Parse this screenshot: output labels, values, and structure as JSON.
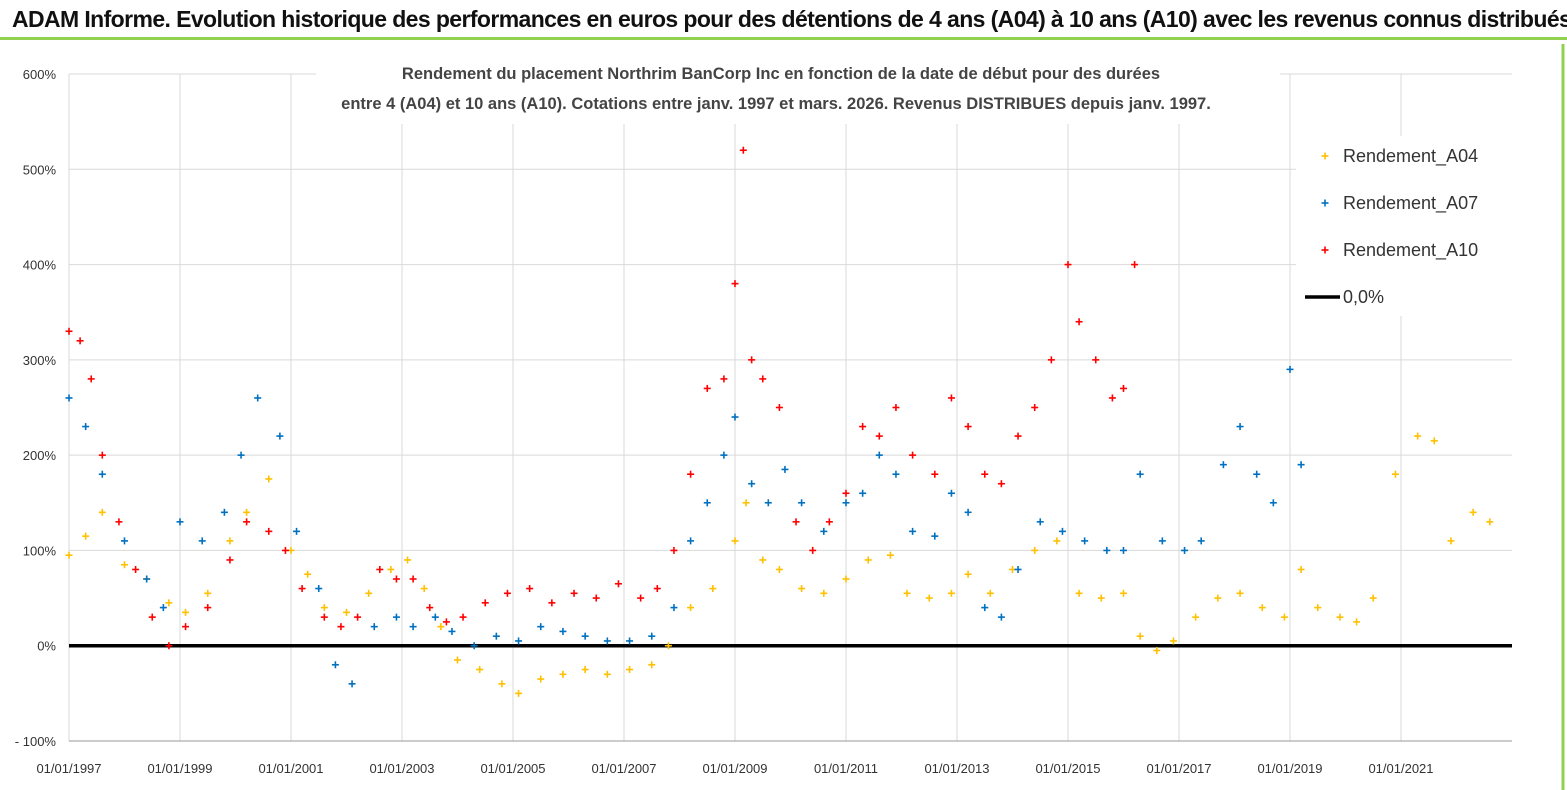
{
  "banner": {
    "title": "ADAM Informe. Evolution historique des performances en euros pour des détentions de 4 ans (A04) à 10 ans (A10) avec les revenus connus distribués"
  },
  "colors": {
    "A04": "#ffc000",
    "A07": "#0070c0",
    "A10": "#ff0000",
    "zero": "#000000",
    "banner_border": "#92d050",
    "grid": "#d9d9d9"
  },
  "chart_data": {
    "type": "scatter",
    "title_lines": [
      "Rendement du placement Northrim BanCorp Inc en fonction de la date de début pour des durées",
      "entre 4 (A04) et 10 ans (A10).  Cotations entre janv. 1997 et mars. 2026. Revenus DISTRIBUES depuis janv. 1997."
    ],
    "y_ticks": [
      "600%",
      "500%",
      "400%",
      "300%",
      "200%",
      "100%",
      "0%",
      "- 100%"
    ],
    "ylim": [
      -100,
      600
    ],
    "x_ticks": [
      "01/01/1997",
      "01/01/1999",
      "01/01/2001",
      "01/01/2003",
      "01/01/2005",
      "01/01/2007",
      "01/01/2009",
      "01/01/2011",
      "01/01/2013",
      "01/01/2015",
      "01/01/2017",
      "01/01/2019",
      "01/01/2021"
    ],
    "xlim": [
      1997.0,
      2023.0
    ],
    "legend_position": "top-right",
    "legend": [
      "Rendement_A04",
      "Rendement_A07",
      "Rendement_A10",
      "0,0%"
    ],
    "series": [
      {
        "name": "Rendement_A04",
        "x": [
          1997.0,
          1997.3,
          1997.6,
          1998.0,
          1998.4,
          1998.8,
          1999.1,
          1999.5,
          1999.9,
          2000.2,
          2000.6,
          2001.0,
          2001.3,
          2001.6,
          2002.0,
          2002.4,
          2002.8,
          2003.1,
          2003.4,
          2003.7,
          2004.0,
          2004.4,
          2004.8,
          2005.1,
          2005.5,
          2005.9,
          2006.3,
          2006.7,
          2007.1,
          2007.5,
          2007.8,
          2008.2,
          2008.6,
          2009.0,
          2009.2,
          2009.5,
          2009.8,
          2010.2,
          2010.6,
          2011.0,
          2011.4,
          2011.8,
          2012.1,
          2012.5,
          2012.9,
          2013.2,
          2013.6,
          2014.0,
          2014.4,
          2014.8,
          2015.2,
          2015.6,
          2016.0,
          2016.3,
          2016.6,
          2016.9,
          2017.3,
          2017.7,
          2018.1,
          2018.5,
          2018.9,
          2019.2,
          2019.5,
          2019.9,
          2020.2,
          2020.5,
          2020.9,
          2021.3,
          2021.6,
          2021.9,
          2022.3,
          2022.6
        ],
        "y": [
          95,
          115,
          140,
          85,
          70,
          45,
          35,
          55,
          110,
          140,
          175,
          100,
          75,
          40,
          35,
          55,
          80,
          90,
          60,
          20,
          -15,
          -25,
          -40,
          -50,
          -35,
          -30,
          -25,
          -30,
          -25,
          -20,
          0,
          40,
          60,
          110,
          150,
          90,
          80,
          60,
          55,
          70,
          90,
          95,
          55,
          50,
          55,
          75,
          55,
          80,
          100,
          110,
          55,
          50,
          55,
          10,
          -5,
          5,
          30,
          50,
          55,
          40,
          30,
          80,
          40,
          30,
          25,
          50,
          180,
          220,
          215,
          110,
          140,
          130
        ]
      },
      {
        "name": "Rendement_A07",
        "x": [
          1997.0,
          1997.3,
          1997.6,
          1998.0,
          1998.4,
          1998.7,
          1999.0,
          1999.4,
          1999.8,
          2000.1,
          2000.4,
          2000.8,
          2001.1,
          2001.5,
          2001.8,
          2002.1,
          2002.5,
          2002.9,
          2003.2,
          2003.6,
          2003.9,
          2004.3,
          2004.7,
          2005.1,
          2005.5,
          2005.9,
          2006.3,
          2006.7,
          2007.1,
          2007.5,
          2007.9,
          2008.2,
          2008.5,
          2008.8,
          2009.0,
          2009.3,
          2009.6,
          2009.9,
          2010.2,
          2010.6,
          2011.0,
          2011.3,
          2011.6,
          2011.9,
          2012.2,
          2012.6,
          2012.9,
          2013.2,
          2013.5,
          2013.8,
          2014.1,
          2014.5,
          2014.9,
          2015.3,
          2015.7,
          2016.0,
          2016.3,
          2016.7,
          2017.1,
          2017.4,
          2017.8,
          2018.1,
          2018.4,
          2018.7,
          2019.0,
          2019.2
        ],
        "y": [
          260,
          230,
          180,
          110,
          70,
          40,
          130,
          110,
          140,
          200,
          260,
          220,
          120,
          60,
          -20,
          -40,
          20,
          30,
          20,
          30,
          15,
          0,
          10,
          5,
          20,
          15,
          10,
          5,
          5,
          10,
          40,
          110,
          150,
          200,
          240,
          170,
          150,
          185,
          150,
          120,
          150,
          160,
          200,
          180,
          120,
          115,
          160,
          140,
          40,
          30,
          80,
          130,
          120,
          110,
          100,
          100,
          180,
          110,
          100,
          110,
          190,
          230,
          180,
          150,
          290,
          190
        ]
      },
      {
        "name": "Rendement_A10",
        "x": [
          1997.0,
          1997.2,
          1997.4,
          1997.6,
          1997.9,
          1998.2,
          1998.5,
          1998.8,
          1999.1,
          1999.5,
          1999.9,
          2000.2,
          2000.6,
          2000.9,
          2001.2,
          2001.6,
          2001.9,
          2002.2,
          2002.6,
          2002.9,
          2003.2,
          2003.5,
          2003.8,
          2004.1,
          2004.5,
          2004.9,
          2005.3,
          2005.7,
          2006.1,
          2006.5,
          2006.9,
          2007.3,
          2007.6,
          2007.9,
          2008.2,
          2008.5,
          2008.8,
          2009.0,
          2009.15,
          2009.3,
          2009.5,
          2009.8,
          2010.1,
          2010.4,
          2010.7,
          2011.0,
          2011.3,
          2011.6,
          2011.9,
          2012.2,
          2012.6,
          2012.9,
          2013.2,
          2013.5,
          2013.8,
          2014.1,
          2014.4,
          2014.7,
          2015.0,
          2015.2,
          2015.5,
          2015.8,
          2016.0,
          2016.2
        ],
        "y": [
          330,
          320,
          280,
          200,
          130,
          80,
          30,
          0,
          20,
          40,
          90,
          130,
          120,
          100,
          60,
          30,
          20,
          30,
          80,
          70,
          70,
          40,
          25,
          30,
          45,
          55,
          60,
          45,
          55,
          50,
          65,
          50,
          60,
          100,
          180,
          270,
          280,
          380,
          520,
          300,
          280,
          250,
          130,
          100,
          130,
          160,
          230,
          220,
          250,
          200,
          180,
          260,
          230,
          180,
          170,
          220,
          250,
          300,
          400,
          340,
          300,
          260,
          270,
          400
        ]
      },
      {
        "name": "0,0%",
        "x": [
          1997.0,
          2023.0
        ],
        "y": [
          0,
          0
        ]
      }
    ]
  }
}
